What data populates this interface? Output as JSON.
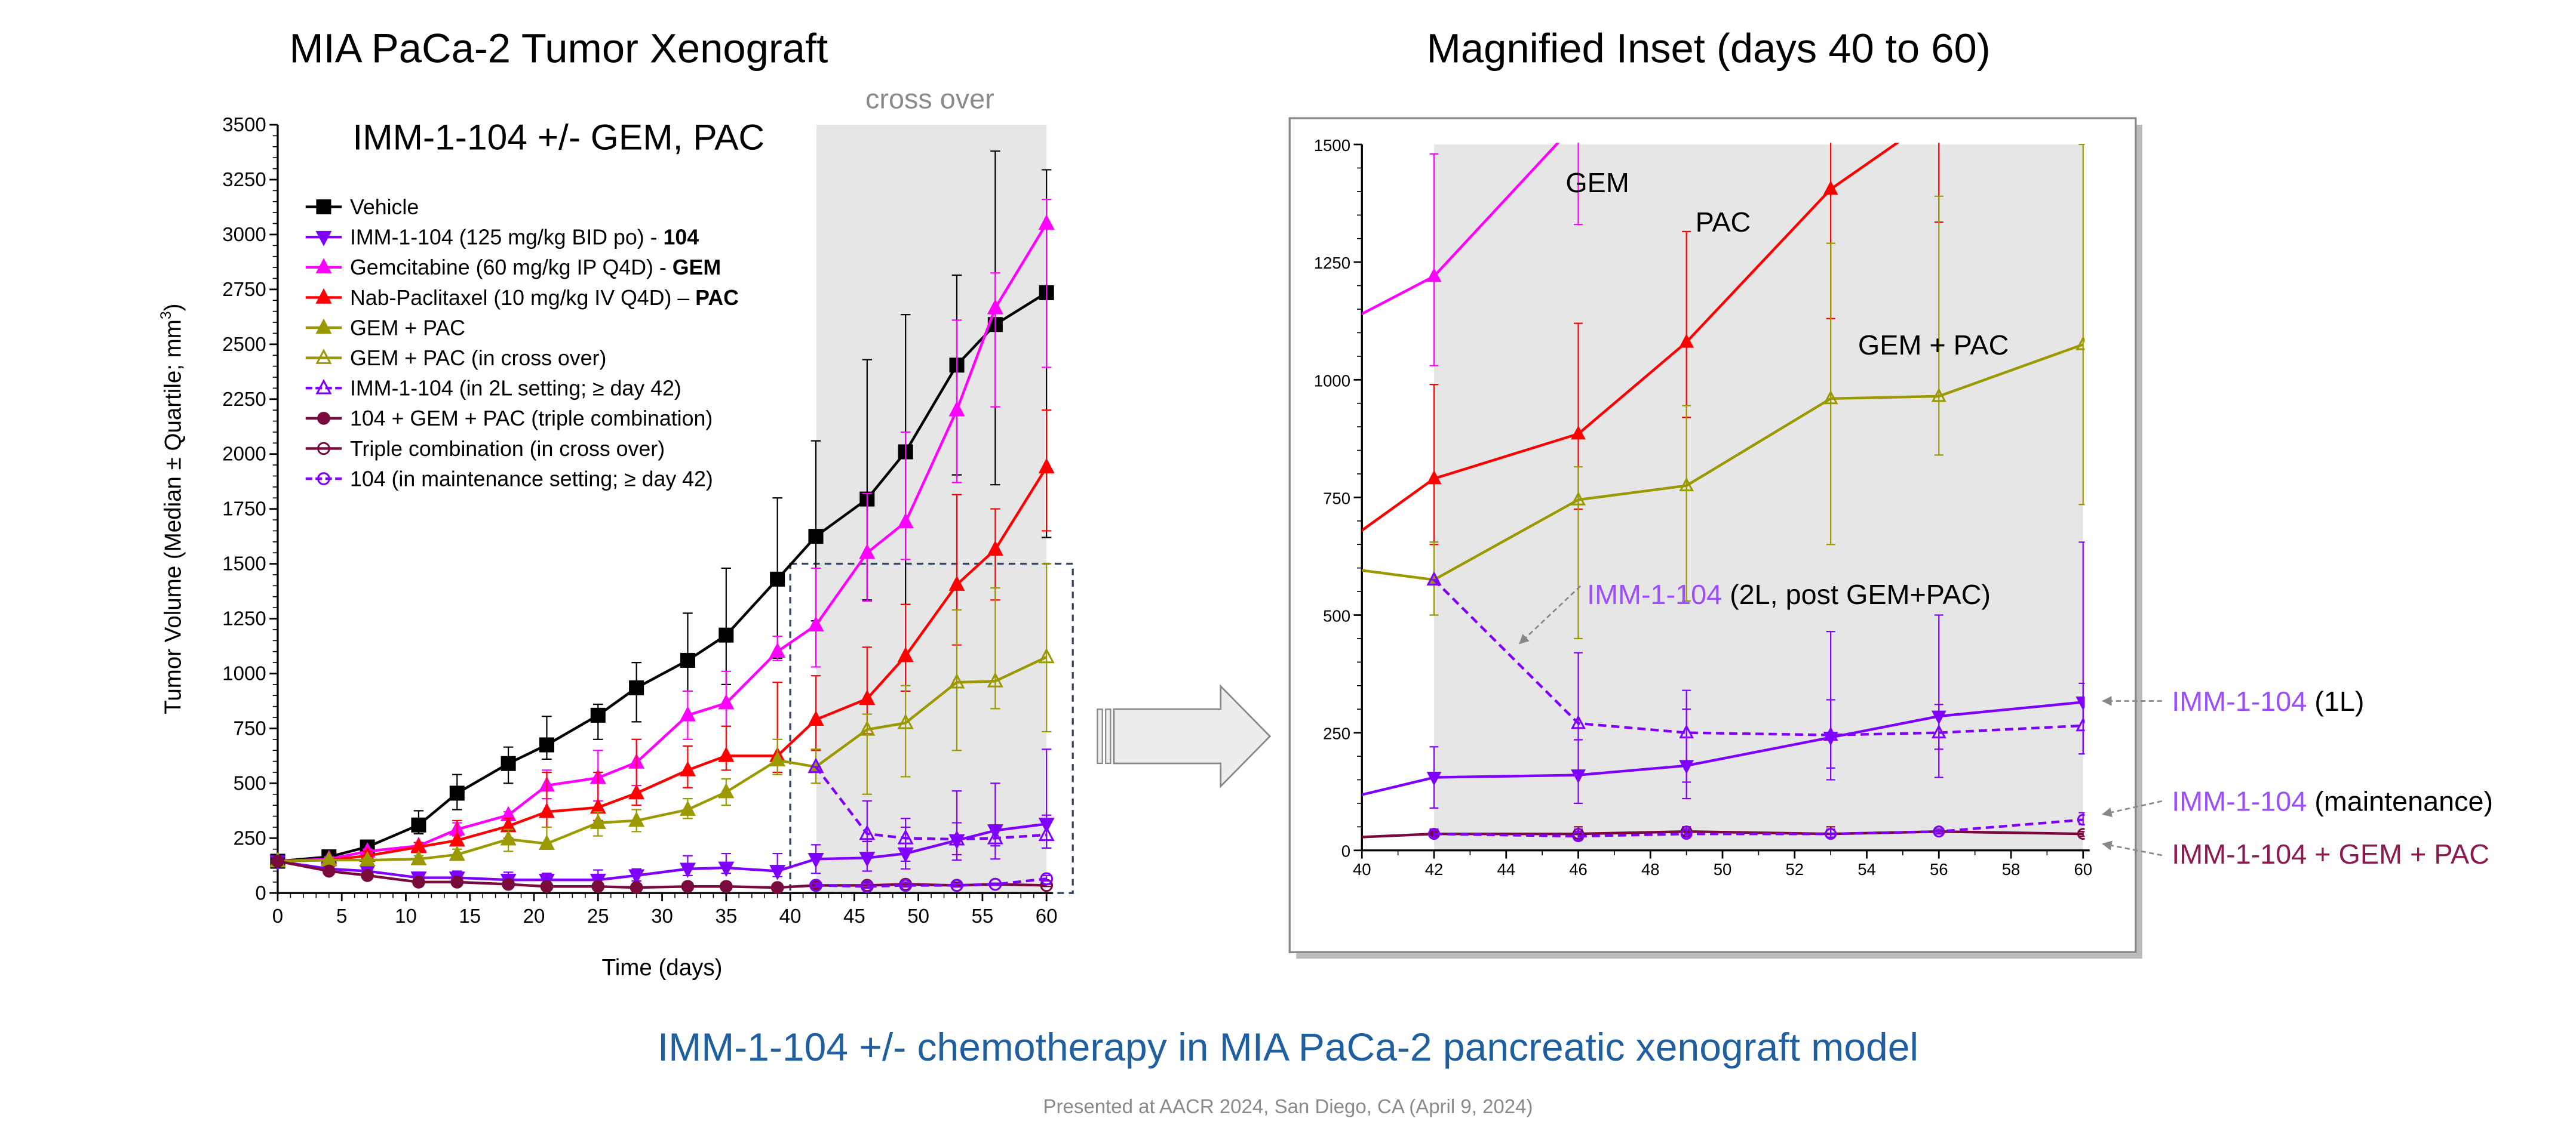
{
  "left_title": "MIA PaCa-2 Tumor Xenograft",
  "right_title": "Magnified Inset (days 40 to 60)",
  "caption": "IMM-1-104 +/- chemotherapy in MIA PaCa-2 pancreatic xenograft model",
  "footer": "Presented at AACR 2024, San Diego, CA (April 9, 2024)",
  "colors": {
    "caption": "#1f5fa0",
    "footer": "#8a8a8a",
    "shade": "#e6e6e6",
    "inset_purple": "#9b4dff",
    "inset_maroon": "#8b1a4f"
  },
  "chart_data": [
    {
      "type": "line",
      "title": "IMM-1-104 +/- GEM, PAC",
      "shaded_region_label": "cross over",
      "shaded_region_x": [
        42,
        60
      ],
      "inset_box": {
        "x": [
          40,
          60
        ],
        "y": [
          0,
          1500
        ]
      },
      "xlabel": "Time (days)",
      "ylabel": "Tumor Volume (Median ± Quartile; mm",
      "ylabel_sup": "3",
      "ylabel_end": ")",
      "xlim": [
        0,
        60
      ],
      "ylim": [
        0,
        3500
      ],
      "xticks": [
        0,
        5,
        10,
        15,
        20,
        25,
        30,
        35,
        40,
        45,
        50,
        55,
        60
      ],
      "yticks": [
        0,
        250,
        500,
        750,
        1000,
        1250,
        1500,
        1750,
        2000,
        2250,
        2500,
        2750,
        3000,
        3250,
        3500
      ],
      "legend_position": "top-left",
      "series": [
        {
          "name": "Vehicle",
          "bold": "",
          "color": "#000000",
          "marker": "square",
          "filled": true,
          "dashed": false,
          "in_inset": false,
          "x": [
            0,
            4,
            7,
            11,
            14,
            18,
            21,
            25,
            28,
            32,
            35,
            39,
            42,
            46,
            49,
            53,
            56,
            60
          ],
          "y": [
            145,
            165,
            210,
            310,
            455,
            590,
            675,
            810,
            935,
            1060,
            1175,
            1430,
            1625,
            1795,
            2010,
            2405,
            2590,
            2735
          ],
          "hi": [
            150,
            180,
            230,
            375,
            540,
            665,
            805,
            860,
            1050,
            1275,
            1480,
            1800,
            2060,
            2430,
            2635,
            2815,
            3380,
            3295
          ],
          "lo": [
            140,
            150,
            190,
            270,
            380,
            500,
            610,
            700,
            780,
            920,
            950,
            1070,
            1240,
            1335,
            1315,
            1905,
            1860,
            1620
          ]
        },
        {
          "name": "IMM-1-104 (125 mg/kg BID po) - ",
          "bold": "104",
          "color": "#7f00ff",
          "marker": "tri-down",
          "filled": true,
          "dashed": false,
          "in_inset": true,
          "x": [
            0,
            4,
            7,
            11,
            14,
            18,
            21,
            25,
            28,
            32,
            35,
            39,
            42,
            46,
            49,
            53,
            56,
            60
          ],
          "y": [
            145,
            110,
            100,
            70,
            70,
            60,
            60,
            60,
            80,
            110,
            115,
            100,
            155,
            160,
            180,
            240,
            285,
            315
          ],
          "hi": [
            150,
            120,
            130,
            95,
            100,
            95,
            90,
            105,
            110,
            170,
            180,
            180,
            220,
            235,
            300,
            320,
            310,
            355
          ],
          "lo": [
            140,
            100,
            85,
            55,
            55,
            45,
            45,
            45,
            55,
            80,
            90,
            75,
            90,
            100,
            110,
            150,
            155,
            205
          ]
        },
        {
          "name": "Gemcitabine (60 mg/kg IP Q4D) - ",
          "bold": "GEM",
          "color": "#ff00ff",
          "marker": "tri-up",
          "filled": true,
          "dashed": false,
          "in_inset": true,
          "x": [
            0,
            4,
            7,
            11,
            14,
            18,
            21,
            25,
            28,
            32,
            35,
            39,
            42,
            46,
            49,
            53,
            56,
            60
          ],
          "y": [
            145,
            155,
            190,
            215,
            290,
            355,
            490,
            525,
            595,
            810,
            865,
            1100,
            1220,
            1550,
            1690,
            2200,
            2665,
            3050
          ],
          "hi": [
            150,
            165,
            200,
            230,
            320,
            370,
            560,
            650,
            700,
            920,
            1010,
            1170,
            1480,
            1820,
            2100,
            2610,
            2825,
            3160
          ],
          "lo": [
            140,
            145,
            180,
            200,
            260,
            290,
            430,
            420,
            490,
            700,
            760,
            1060,
            1030,
            1330,
            1520,
            1870,
            2215,
            2395
          ]
        },
        {
          "name": "Nab-Paclitaxel (10 mg/kg IV Q4D) – ",
          "bold": "PAC",
          "color": "#ff0000",
          "marker": "tri-up",
          "filled": true,
          "dashed": false,
          "in_inset": true,
          "x": [
            0,
            4,
            7,
            11,
            14,
            18,
            21,
            25,
            28,
            32,
            35,
            39,
            42,
            46,
            49,
            53,
            56,
            60
          ],
          "y": [
            145,
            150,
            170,
            210,
            240,
            305,
            370,
            390,
            455,
            560,
            625,
            625,
            790,
            885,
            1080,
            1405,
            1565,
            1940
          ],
          "hi": [
            150,
            160,
            190,
            230,
            330,
            340,
            550,
            550,
            700,
            670,
            760,
            960,
            990,
            1120,
            1315,
            1815,
            1750,
            2200
          ],
          "lo": [
            140,
            140,
            150,
            190,
            220,
            250,
            300,
            330,
            400,
            480,
            560,
            550,
            650,
            725,
            920,
            1130,
            1335,
            1650
          ]
        },
        {
          "name": "GEM + PAC",
          "bold": "",
          "color": "#9a9a00",
          "marker": "tri-up",
          "filled": true,
          "dashed": false,
          "in_inset": true,
          "x": [
            0,
            4,
            7,
            11,
            14,
            18,
            21,
            25,
            28,
            32,
            35,
            39,
            42
          ],
          "y": [
            145,
            150,
            150,
            155,
            175,
            245,
            225,
            320,
            330,
            380,
            460,
            605,
            575
          ],
          "hi": [
            150,
            160,
            160,
            170,
            200,
            290,
            300,
            370,
            380,
            430,
            520,
            700,
            655
          ],
          "lo": [
            140,
            140,
            140,
            140,
            150,
            190,
            200,
            260,
            280,
            340,
            400,
            540,
            500
          ]
        },
        {
          "name": "GEM + PAC (in cross over)",
          "bold": "",
          "color": "#9a9a00",
          "marker": "tri-up",
          "filled": false,
          "dashed": false,
          "in_inset": true,
          "x": [
            42,
            46,
            49,
            53,
            56,
            60
          ],
          "y": [
            575,
            745,
            775,
            960,
            965,
            1075
          ],
          "hi": [
            655,
            815,
            945,
            1290,
            1390,
            1500
          ],
          "lo": [
            500,
            450,
            530,
            650,
            840,
            735
          ]
        },
        {
          "name": "IMM-1-104 (in 2L setting; ≥ day 42)",
          "bold": "",
          "color": "#7f00ff",
          "marker": "tri-up",
          "filled": false,
          "dashed": true,
          "in_inset": true,
          "x": [
            42,
            46,
            49,
            53,
            56,
            60
          ],
          "y": [
            575,
            270,
            250,
            245,
            250,
            265
          ],
          "hi": [
            575,
            420,
            340,
            465,
            500,
            655
          ],
          "lo": [
            575,
            235,
            145,
            175,
            215,
            205
          ]
        },
        {
          "name": "104 + GEM + PAC (triple combination)",
          "bold": "",
          "color": "#7a0a3c",
          "marker": "circle",
          "filled": true,
          "dashed": false,
          "in_inset": true,
          "x": [
            0,
            4,
            7,
            11,
            14,
            18,
            21,
            25,
            28,
            32,
            35,
            39,
            42
          ],
          "y": [
            145,
            100,
            80,
            50,
            50,
            40,
            30,
            30,
            25,
            30,
            30,
            25,
            35
          ],
          "hi": [
            150,
            115,
            95,
            65,
            65,
            55,
            45,
            45,
            40,
            45,
            45,
            40,
            45
          ],
          "lo": [
            140,
            90,
            70,
            40,
            40,
            30,
            22,
            22,
            18,
            22,
            22,
            18,
            28
          ]
        },
        {
          "name": "Triple combination (in cross over)",
          "bold": "",
          "color": "#7a0a3c",
          "marker": "circle",
          "filled": false,
          "dashed": false,
          "in_inset": true,
          "x": [
            42,
            46,
            49,
            53,
            56,
            60
          ],
          "y": [
            35,
            35,
            40,
            35,
            40,
            35
          ],
          "hi": [
            45,
            50,
            50,
            50,
            45,
            40
          ],
          "lo": [
            28,
            25,
            30,
            28,
            35,
            30
          ]
        },
        {
          "name": "104 (in maintenance setting; ≥ day 42)",
          "bold": "",
          "color": "#7f00ff",
          "marker": "circle",
          "filled": false,
          "dashed": true,
          "in_inset": true,
          "x": [
            42,
            46,
            49,
            53,
            56,
            60
          ],
          "y": [
            35,
            30,
            35,
            35,
            40,
            65
          ],
          "hi": [
            45,
            45,
            50,
            45,
            45,
            80
          ],
          "lo": [
            28,
            22,
            28,
            28,
            35,
            55
          ]
        }
      ]
    },
    {
      "type": "line",
      "title": "Magnified Inset (days 40 to 60)",
      "xlim": [
        40,
        60
      ],
      "ylim": [
        0,
        1500
      ],
      "xticks": [
        40,
        42,
        44,
        46,
        48,
        50,
        52,
        54,
        56,
        58,
        60
      ],
      "yticks": [
        0,
        250,
        500,
        750,
        1000,
        1250,
        1500
      ],
      "annotations": {
        "gem": "GEM",
        "pac": "PAC",
        "gempac": "GEM + PAC",
        "l2_a": "IMM-1-104",
        "l2_b": " (2L, post GEM+PAC)",
        "l1_a": "IMM-1-104",
        "l1_b": " (1L)",
        "maint_a": "IMM-1-104",
        "maint_b": " (maintenance)",
        "triple": "IMM-1-104 + GEM + PAC"
      }
    }
  ]
}
